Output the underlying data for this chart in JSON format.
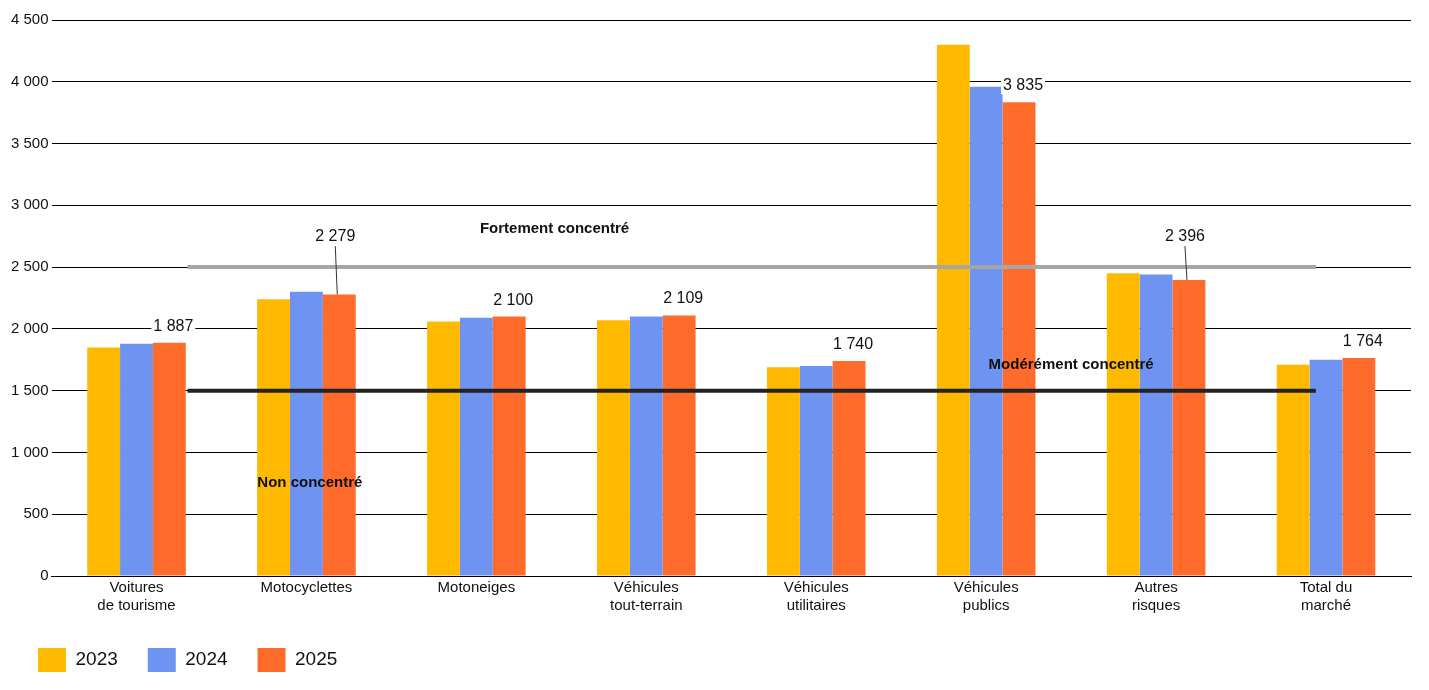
{
  "chart_data": {
    "type": "bar",
    "categories": [
      "Voitures de tourisme",
      "Motocyclettes",
      "Motoneiges",
      "Véhicules tout-terrain",
      "Véhicules utilitaires",
      "Véhicules publics",
      "Autres risques",
      "Total du marché"
    ],
    "series": [
      {
        "name": "2023",
        "color": "#ffb900",
        "values": [
          1850,
          2240,
          2060,
          2070,
          1690,
          4300,
          2450,
          1710
        ]
      },
      {
        "name": "2024",
        "color": "#6e93f0",
        "values": [
          1880,
          2300,
          2090,
          2100,
          1700,
          3960,
          2440,
          1750
        ]
      },
      {
        "name": "2025",
        "color": "#ff6b2b",
        "values": [
          1887,
          2279,
          2100,
          2109,
          1740,
          3835,
          2396,
          1764
        ],
        "value_labels": [
          "1 887",
          "2 279",
          "2 100",
          "2 109",
          "1 740",
          "3 835",
          "2 396",
          "1 764"
        ]
      }
    ],
    "ylim": [
      0,
      4500
    ],
    "yticks": [
      {
        "value": 0,
        "label": "0"
      },
      {
        "value": 500,
        "label": "500"
      },
      {
        "value": 1000,
        "label": "1 000"
      },
      {
        "value": 1500,
        "label": "1 500"
      },
      {
        "value": 2000,
        "label": "2 000"
      },
      {
        "value": 2500,
        "label": "2 500"
      },
      {
        "value": 3000,
        "label": "3 000"
      },
      {
        "value": 3500,
        "label": "3 500"
      },
      {
        "value": 4000,
        "label": "4 000"
      },
      {
        "value": 4500,
        "label": "4 500"
      }
    ],
    "grid": "y",
    "legend": "bottom left",
    "ref_lines": [
      {
        "axis": "y",
        "value": 2500,
        "label": "Fortement concentré",
        "color": "#a6a6a6"
      },
      {
        "axis": "y",
        "value": 1500,
        "label": "Modérément concentré",
        "color": "#222222"
      }
    ],
    "annotations": [
      "Non concentré"
    ]
  }
}
